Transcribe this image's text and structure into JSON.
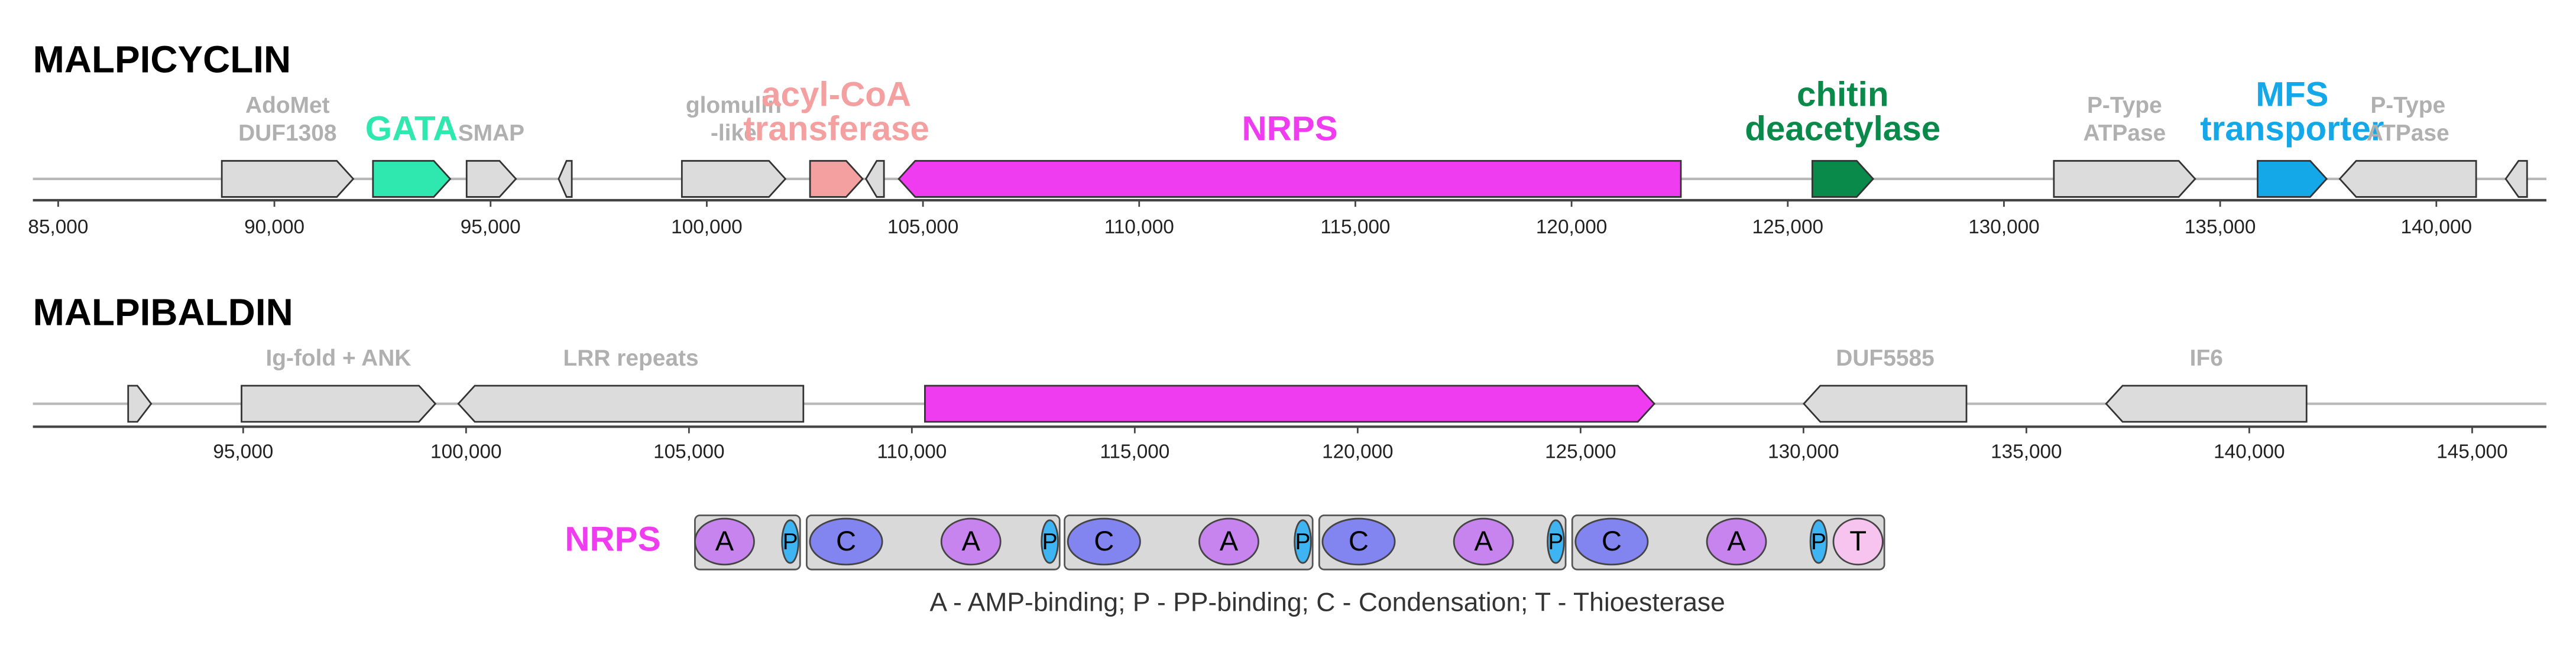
{
  "tracks": [
    {
      "title": "MALPICYCLIN",
      "xlim": [
        84415,
        142545
      ],
      "ticks": [
        {
          "value": 85000,
          "label": "85,000"
        },
        {
          "value": 90000,
          "label": "90,000"
        },
        {
          "value": 95000,
          "label": "95,000"
        },
        {
          "value": 100000,
          "label": "100,000"
        },
        {
          "value": 105000,
          "label": "105,000"
        },
        {
          "value": 110000,
          "label": "110,000"
        },
        {
          "value": 115000,
          "label": "115,000"
        },
        {
          "value": 120000,
          "label": "120,000"
        },
        {
          "value": 125000,
          "label": "125,000"
        },
        {
          "value": 130000,
          "label": "130,000"
        },
        {
          "value": 135000,
          "label": "135,000"
        },
        {
          "value": 140000,
          "label": "140,000"
        }
      ],
      "genes": [
        {
          "start": 88784,
          "end": 91824,
          "strand": 1,
          "color": "#dcdcdc",
          "label": [
            "AdoMet",
            "DUF1308"
          ]
        },
        {
          "start": 92280,
          "end": 94066,
          "strand": 1,
          "color": "#2ee8b0",
          "label": [
            "GATA"
          ],
          "highlight": true
        },
        {
          "start": 94446,
          "end": 95586,
          "strand": 1,
          "color": "#dcdcdc",
          "label": [
            "SMAP"
          ]
        },
        {
          "start": 96574,
          "end": 96878,
          "strand": -1,
          "color": "#dcdcdc"
        },
        {
          "start": 99424,
          "end": 101818,
          "strand": 1,
          "color": "#dcdcdc",
          "label": [
            "glomulin",
            "-like"
          ]
        },
        {
          "start": 102388,
          "end": 103604,
          "strand": 1,
          "color": "#f4a0a0",
          "label": [
            "acyl-CoA",
            "transferase"
          ],
          "highlight": true
        },
        {
          "start": 103680,
          "end": 104098,
          "strand": -1,
          "color": "#dcdcdc"
        },
        {
          "start": 104440,
          "end": 122528,
          "strand": -1,
          "color": "#f03cf0",
          "label": [
            "NRPS"
          ],
          "highlight": true
        },
        {
          "start": 125568,
          "end": 126974,
          "strand": 1,
          "color": "#0a8a4a",
          "label": [
            "chitin",
            "deacetylase"
          ],
          "highlight": true
        },
        {
          "start": 131154,
          "end": 134422,
          "strand": 1,
          "color": "#dcdcdc",
          "label": [
            "P-Type",
            "ATPase"
          ]
        },
        {
          "start": 135866,
          "end": 137462,
          "strand": 1,
          "color": "#14a8e8",
          "label": [
            "MFS",
            "transporter"
          ],
          "highlight": true
        },
        {
          "start": 137766,
          "end": 140920,
          "strand": -1,
          "color": "#dcdcdc",
          "label": [
            "P-Type",
            "ATPase"
          ]
        },
        {
          "start": 141604,
          "end": 142098,
          "strand": -1,
          "color": "#dcdcdc"
        }
      ]
    },
    {
      "title": "MALPIBALDIN",
      "xlim": [
        90283,
        146665
      ],
      "ticks": [
        {
          "value": 95000,
          "label": "95,000"
        },
        {
          "value": 100000,
          "label": "100,000"
        },
        {
          "value": 105000,
          "label": "105,000"
        },
        {
          "value": 110000,
          "label": "110,000"
        },
        {
          "value": 115000,
          "label": "115,000"
        },
        {
          "value": 120000,
          "label": "120,000"
        },
        {
          "value": 125000,
          "label": "125,000"
        },
        {
          "value": 130000,
          "label": "130,000"
        },
        {
          "value": 135000,
          "label": "135,000"
        },
        {
          "value": 140000,
          "label": "140,000"
        },
        {
          "value": 145000,
          "label": "145,000"
        }
      ],
      "genes": [
        {
          "start": 92420,
          "end": 92936,
          "strand": 1,
          "color": "#dcdcdc"
        },
        {
          "start": 94963,
          "end": 99311,
          "strand": 1,
          "color": "#dcdcdc",
          "label": [
            "Ig-fold + ANK"
          ]
        },
        {
          "start": 99827,
          "end": 107566,
          "strand": -1,
          "color": "#dcdcdc",
          "label": [
            "LRR repeats"
          ]
        },
        {
          "start": 110293,
          "end": 126654,
          "strand": 1,
          "color": "#f03cf0"
        },
        {
          "start": 130008,
          "end": 133656,
          "strand": -1,
          "color": "#dcdcdc",
          "label": [
            "DUF5585"
          ]
        },
        {
          "start": 136789,
          "end": 141285,
          "strand": -1,
          "color": "#dcdcdc",
          "label": [
            "IF6"
          ]
        }
      ]
    }
  ],
  "nrps": {
    "label": "NRPS",
    "modules": [
      [
        "A",
        "P"
      ],
      [
        "C",
        "A",
        "P"
      ],
      [
        "C",
        "A",
        "P"
      ],
      [
        "C",
        "A",
        "P"
      ],
      [
        "C",
        "A",
        "P",
        "T"
      ]
    ],
    "domain_colors": {
      "A": "#c783ee",
      "P": "#3fb4f2",
      "C": "#8284f0",
      "T": "#f7c4f0"
    },
    "legend": "A - AMP-binding; P - PP-binding; C - Condensation; T - Thioesterase"
  }
}
